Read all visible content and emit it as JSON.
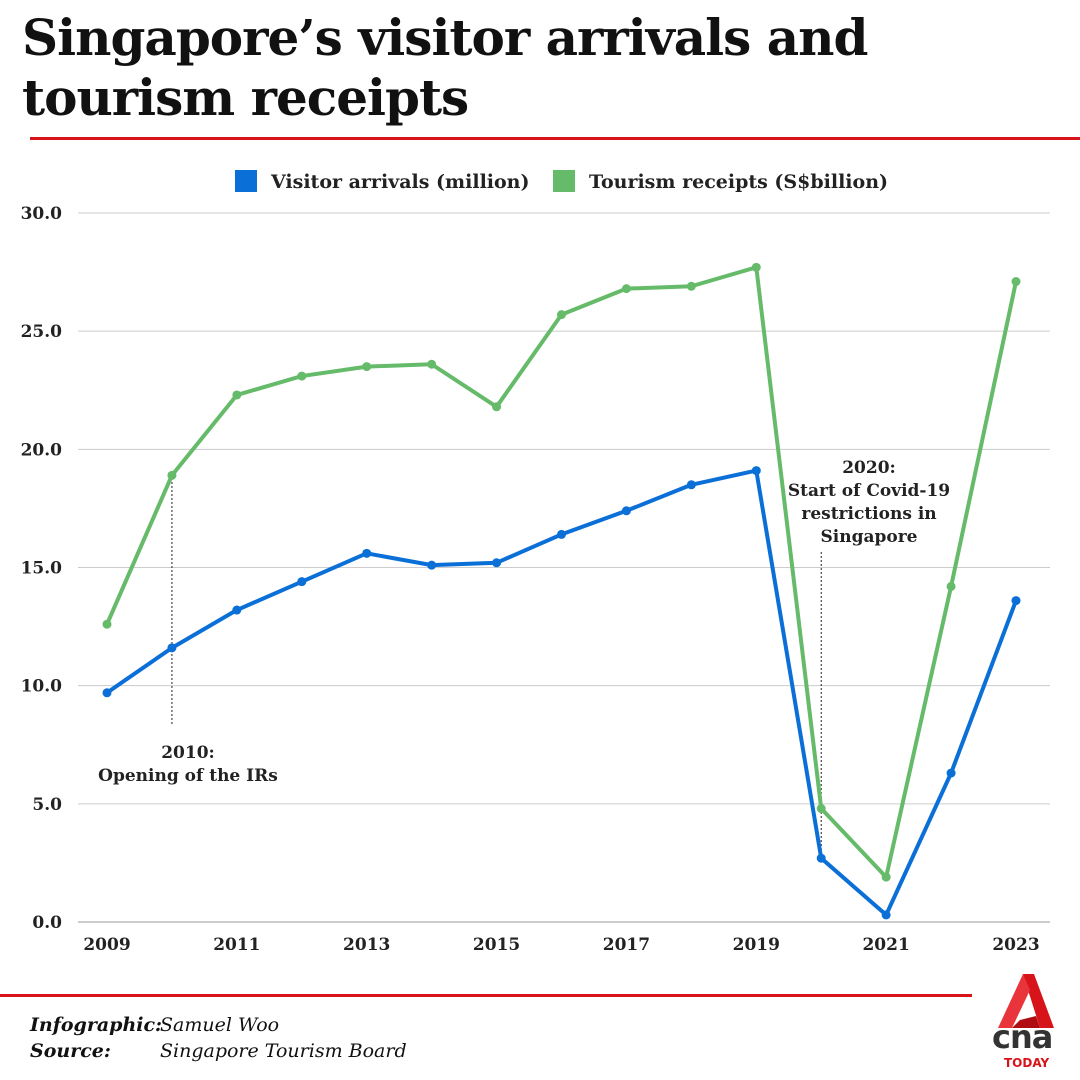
{
  "title": "Singapore’s visitor arrivals and tourism receipts",
  "chart_data": {
    "type": "line",
    "title": "Singapore’s visitor arrivals and tourism receipts",
    "x": [
      2009,
      2010,
      2011,
      2012,
      2013,
      2014,
      2015,
      2016,
      2017,
      2018,
      2019,
      2020,
      2021,
      2022,
      2023
    ],
    "x_tick_labels": [
      "2009",
      "2011",
      "2013",
      "2015",
      "2017",
      "2019",
      "2021",
      "2023"
    ],
    "y_tick_labels": [
      "0.0",
      "5.0",
      "10.0",
      "15.0",
      "20.0",
      "25.0",
      "30.0"
    ],
    "ylim": [
      0,
      30
    ],
    "grid": true,
    "legend_position": "top-center",
    "series": [
      {
        "name": "Visitor arrivals (million)",
        "color": "#0a6fd6",
        "values": [
          9.7,
          11.6,
          13.2,
          14.4,
          15.6,
          15.1,
          15.2,
          16.4,
          17.4,
          18.5,
          19.1,
          2.7,
          0.3,
          6.3,
          13.6
        ]
      },
      {
        "name": "Tourism receipts (S$billion)",
        "color": "#66bb6a",
        "values": [
          12.6,
          18.9,
          22.3,
          23.1,
          23.5,
          23.6,
          21.8,
          25.7,
          26.8,
          26.9,
          27.7,
          4.8,
          1.9,
          14.2,
          27.1
        ]
      }
    ],
    "annotations": [
      {
        "x": 2010,
        "lines": [
          "2010:",
          "Opening of the IRs"
        ]
      },
      {
        "x": 2020,
        "lines": [
          "2020:",
          "Start of Covid-19",
          "restrictions in",
          "Singapore"
        ]
      }
    ]
  },
  "footer": {
    "infographic_label": "Infographic:",
    "infographic_value": "Samuel Woo",
    "source_label": "Source:",
    "source_value": "Singapore Tourism Board"
  },
  "logo": {
    "text": "cna",
    "sub": "TODAY"
  }
}
